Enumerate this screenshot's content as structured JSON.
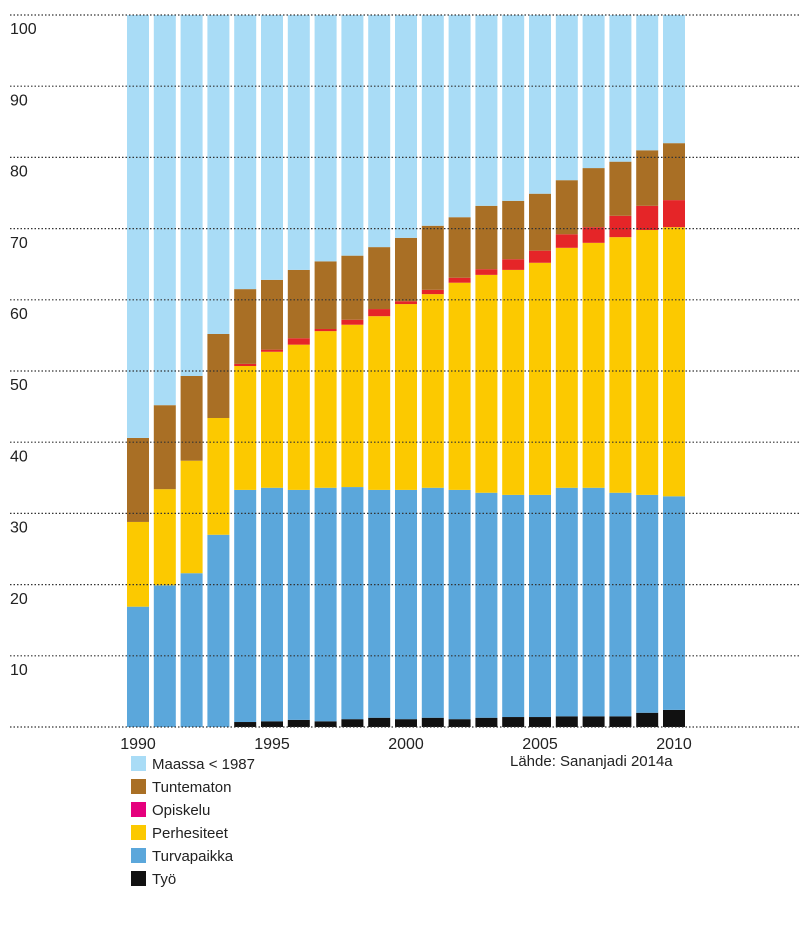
{
  "chart_data": {
    "type": "stacked_bar",
    "source": "Lähde: Sananjadi 2014a",
    "categories": [
      1990,
      null,
      null,
      null,
      null,
      1995,
      null,
      null,
      null,
      null,
      2000,
      null,
      null,
      null,
      null,
      2005,
      null,
      null,
      null,
      null,
      2010
    ],
    "series": [
      {
        "name": "Työ",
        "color": "#111111",
        "values": [
          0,
          0,
          0,
          0,
          0.7,
          0.8,
          1.0,
          0.8,
          1.1,
          1.3,
          1.1,
          1.3,
          1.1,
          1.3,
          1.4,
          1.4,
          1.5,
          1.5,
          1.5,
          2.0,
          2.4
        ]
      },
      {
        "name": "Turvapaikka",
        "color": "#5ba7db",
        "values": [
          16.9,
          19.9,
          21.6,
          27.0,
          32.6,
          32.8,
          32.3,
          32.8,
          32.6,
          32.0,
          32.2,
          32.3,
          32.2,
          31.6,
          31.2,
          31.2,
          32.1,
          32.1,
          31.4,
          30.6,
          30.0
        ]
      },
      {
        "name": "Perhesiteet",
        "color": "#fcc900",
        "values": [
          11.9,
          13.5,
          15.8,
          16.4,
          17.4,
          19.1,
          20.4,
          22.0,
          22.8,
          24.4,
          26.1,
          27.2,
          29.1,
          30.6,
          31.6,
          32.6,
          33.7,
          34.4,
          35.9,
          37.2,
          37.8
        ]
      },
      {
        "name": "Opiskelu",
        "color": "#e52528",
        "legend_color": "#e5007d",
        "values": [
          0,
          0,
          0,
          0,
          0.3,
          0.3,
          0.9,
          0.3,
          0.7,
          1.0,
          0.4,
          0.6,
          0.7,
          0.8,
          1.5,
          1.7,
          1.9,
          2.2,
          3.0,
          3.4,
          3.8
        ]
      },
      {
        "name": "Tuntematon",
        "color": "#a96f25",
        "values": [
          11.8,
          11.8,
          11.9,
          11.8,
          10.5,
          9.8,
          9.6,
          9.5,
          9.0,
          8.7,
          8.9,
          9.0,
          8.5,
          8.9,
          8.2,
          8.0,
          7.6,
          8.3,
          7.6,
          7.8,
          8.0
        ]
      },
      {
        "name": "Maassa < 1987",
        "color": "#a9dcf6",
        "values": [
          59.4,
          54.8,
          50.7,
          44.8,
          38.5,
          37.2,
          35.8,
          34.6,
          33.8,
          32.6,
          31.3,
          29.6,
          28.4,
          26.8,
          26.1,
          25.1,
          23.2,
          21.5,
          20.6,
          19.0,
          18.0
        ]
      }
    ],
    "ylim": [
      0,
      100
    ],
    "yticks": [
      10,
      20,
      30,
      40,
      50,
      60,
      70,
      80,
      90,
      100
    ],
    "grid": true
  }
}
